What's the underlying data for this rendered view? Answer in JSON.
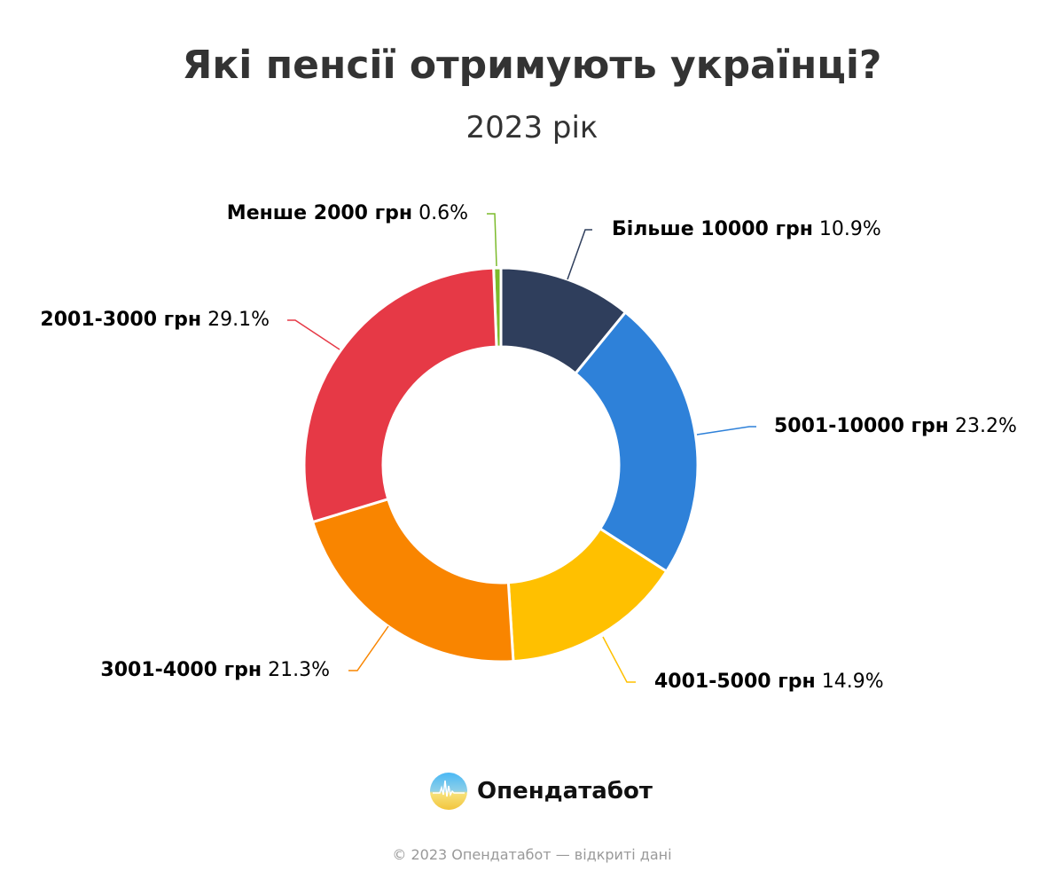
{
  "chart_data": {
    "type": "pie",
    "variant": "donut",
    "title": "Які пенсії отримують українці?",
    "subtitle": "2023 рік",
    "slices": [
      {
        "label": "Менше 2000 грн",
        "value": 0.6,
        "value_label": "0.6%",
        "color": "#7cbb2c"
      },
      {
        "label": "Більше 10000 грн",
        "value": 10.9,
        "value_label": "10.9%",
        "color": "#2f3e5c"
      },
      {
        "label": "5001-10000 грн",
        "value": 23.2,
        "value_label": "23.2%",
        "color": "#2e81d9"
      },
      {
        "label": "4001-5000 грн",
        "value": 14.9,
        "value_label": "14.9%",
        "color": "#ffc000"
      },
      {
        "label": "3001-4000 грн",
        "value": 21.3,
        "value_label": "21.3%",
        "color": "#f98500"
      },
      {
        "label": "2001-3000 грн",
        "value": 29.1,
        "value_label": "29.1%",
        "color": "#e63946"
      }
    ]
  },
  "brand": {
    "name": "Опендатабот"
  },
  "footer": "© 2023 Опендатабот — відкриті дані"
}
